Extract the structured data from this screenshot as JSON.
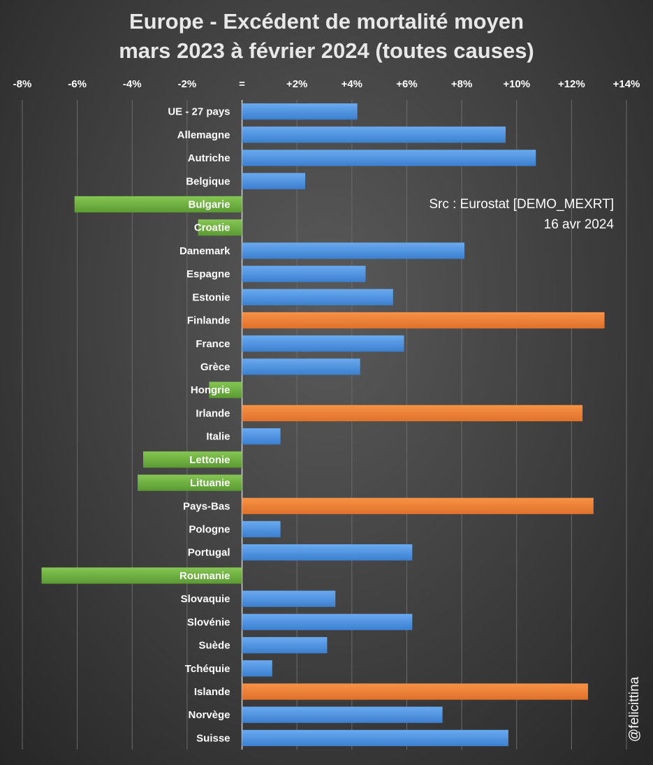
{
  "title_line1": "Europe - Excédent de mortalité moyen",
  "title_line2": "mars 2023 à février 2024 (toutes causes)",
  "source_line1": "Src : Eurostat [DEMO_MEXRT]",
  "source_line2": "16 avr 2024",
  "watermark": "@felicittina",
  "colors": {
    "positive": "#4a8fd8",
    "negative": "#6aab3d",
    "highlight": "#ed7d31"
  },
  "chart_data": {
    "type": "bar",
    "orientation": "horizontal",
    "xlim": [
      -8,
      14
    ],
    "ticks": [
      -8,
      -6,
      -4,
      -2,
      0,
      2,
      4,
      6,
      8,
      10,
      12,
      14
    ],
    "tick_labels": [
      "-8%",
      "-6%",
      "-4%",
      "-2%",
      "=",
      "+2%",
      "+4%",
      "+6%",
      "+8%",
      "+10%",
      "+12%",
      "+14%"
    ],
    "grid": true,
    "categories": [
      "UE - 27 pays",
      "Allemagne",
      "Autriche",
      "Belgique",
      "Bulgarie",
      "Croatie",
      "Danemark",
      "Espagne",
      "Estonie",
      "Finlande",
      "France",
      "Grèce",
      "Hongrie",
      "Irlande",
      "Italie",
      "Lettonie",
      "Lituanie",
      "Pays-Bas",
      "Pologne",
      "Portugal",
      "Roumanie",
      "Slovaquie",
      "Slovénie",
      "Suède",
      "Tchéquie",
      "Islande",
      "Norvège",
      "Suisse"
    ],
    "values": [
      4.2,
      9.6,
      10.7,
      2.3,
      -6.1,
      -1.6,
      8.1,
      4.5,
      5.5,
      13.2,
      5.9,
      4.3,
      -1.2,
      12.4,
      1.4,
      -3.6,
      -3.8,
      12.8,
      1.4,
      6.2,
      -7.3,
      3.4,
      6.2,
      3.1,
      1.1,
      12.6,
      7.3,
      9.7
    ],
    "highlight": [
      "Finlande",
      "Irlande",
      "Pays-Bas",
      "Islande"
    ]
  }
}
